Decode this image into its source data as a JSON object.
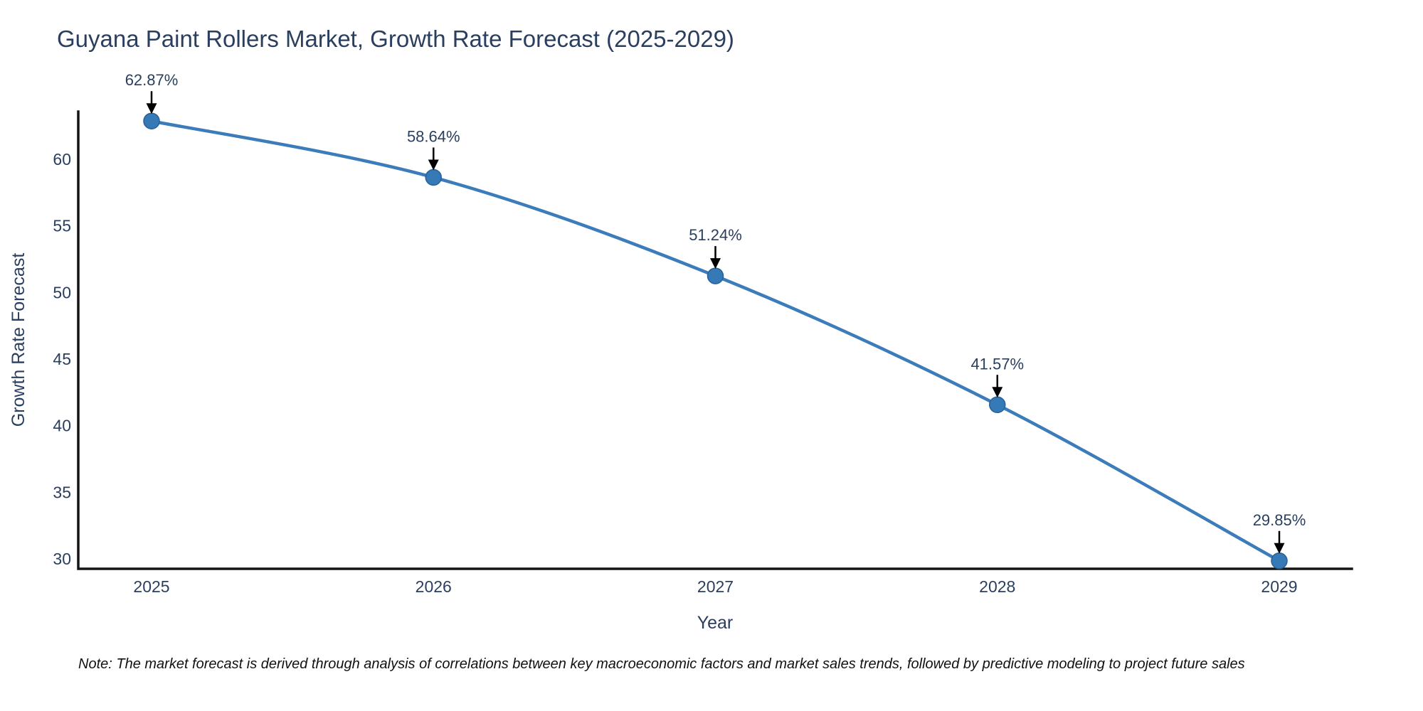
{
  "chart_data": {
    "type": "line",
    "title": "Guyana Paint Rollers Market, Growth Rate Forecast (2025-2029)",
    "xlabel": "Year",
    "ylabel": "Growth Rate Forecast",
    "categories": [
      "2025",
      "2026",
      "2027",
      "2028",
      "2029"
    ],
    "series": [
      {
        "name": "Growth Rate Forecast",
        "values": [
          62.87,
          58.64,
          51.24,
          41.57,
          29.85
        ]
      }
    ],
    "point_labels": [
      "62.87%",
      "58.64%",
      "51.24%",
      "41.57%",
      "29.85%"
    ],
    "yticks": [
      30,
      35,
      40,
      45,
      50,
      55,
      60
    ],
    "ylim": [
      29.25,
      63.6
    ],
    "grid": false,
    "legend": false,
    "line_shape": "spline",
    "colors": {
      "line": "#3c7cba",
      "marker": "#357ab7",
      "marker_edge": "#2a6095",
      "axis": "#141414",
      "text": "#2a3f5f",
      "annotation_arrow": "#000000",
      "note_text": "#111111",
      "background": "#ffffff"
    }
  },
  "footnote": "Note: The market forecast is derived through analysis of correlations between key macroeconomic factors and market sales trends, followed by predictive modeling to project future sales"
}
